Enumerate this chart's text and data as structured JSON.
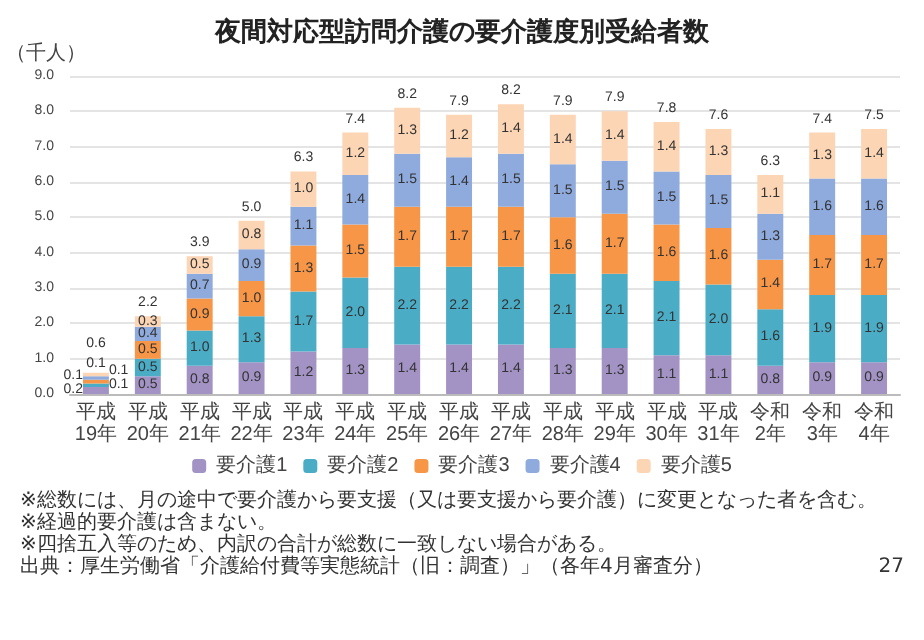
{
  "chart_data": {
    "type": "bar",
    "title": "夜間対応型訪問介護の要介護度別受給者数",
    "ylabel": "（千人）",
    "categories": [
      "平成19年",
      "平成20年",
      "平成21年",
      "平成22年",
      "平成23年",
      "平成24年",
      "平成25年",
      "平成26年",
      "平成27年",
      "平成28年",
      "平成29年",
      "平成30年",
      "平成31年",
      "令和2年",
      "令和3年",
      "令和4年"
    ],
    "stacked": true,
    "grid": "y",
    "legend": "bottom",
    "ylim": [
      0,
      9
    ],
    "yticks": [
      {
        "value": 0,
        "label": "0.0"
      },
      {
        "value": 1,
        "label": "1.0"
      },
      {
        "value": 2,
        "label": "2.0"
      },
      {
        "value": 3,
        "label": "3.0"
      },
      {
        "value": 4,
        "label": "4.0"
      },
      {
        "value": 5,
        "label": "5.0"
      },
      {
        "value": 6,
        "label": "6.0"
      },
      {
        "value": 7,
        "label": "7.0"
      },
      {
        "value": 8,
        "label": "8.0"
      },
      {
        "value": 9,
        "label": "9.0"
      }
    ],
    "series": [
      {
        "name": "要介護1",
        "color": "#a393c5",
        "values": [
          0.2,
          0.5,
          0.8,
          0.9,
          1.2,
          1.3,
          1.4,
          1.4,
          1.4,
          1.3,
          1.3,
          1.1,
          1.1,
          0.8,
          0.9,
          0.9
        ],
        "value_labels": [
          "0.2",
          "0.5",
          "0.8",
          "0.9",
          "1.2",
          "1.3",
          "1.4",
          "1.4",
          "1.4",
          "1.3",
          "1.3",
          "1.1",
          "1.1",
          "0.8",
          "0.9",
          "0.9"
        ]
      },
      {
        "name": "要介護2",
        "color": "#4bacc6",
        "values": [
          0.1,
          0.5,
          1.0,
          1.3,
          1.7,
          2.0,
          2.2,
          2.2,
          2.2,
          2.1,
          2.1,
          2.1,
          2.0,
          1.6,
          1.9,
          1.9
        ],
        "value_labels": [
          "0.1",
          "0.5",
          "1.0",
          "1.3",
          "1.7",
          "2.0",
          "2.2",
          "2.2",
          "2.2",
          "2.1",
          "2.1",
          "2.1",
          "2.0",
          "1.6",
          "1.9",
          "1.9"
        ]
      },
      {
        "name": "要介護3",
        "color": "#f79646",
        "values": [
          0.1,
          0.5,
          0.9,
          1.0,
          1.3,
          1.5,
          1.7,
          1.7,
          1.7,
          1.6,
          1.7,
          1.6,
          1.6,
          1.4,
          1.7,
          1.7
        ],
        "value_labels": [
          "0.1",
          "0.5",
          "0.9",
          "1.0",
          "1.3",
          "1.5",
          "1.7",
          "1.7",
          "1.7",
          "1.6",
          "1.7",
          "1.6",
          "1.6",
          "1.4",
          "1.7",
          "1.7"
        ]
      },
      {
        "name": "要介護4",
        "color": "#8faadc",
        "values": [
          0.1,
          0.4,
          0.7,
          0.9,
          1.1,
          1.4,
          1.5,
          1.4,
          1.5,
          1.5,
          1.5,
          1.5,
          1.5,
          1.3,
          1.6,
          1.6
        ],
        "value_labels": [
          "0.1",
          "0.4",
          "0.7",
          "0.9",
          "1.1",
          "1.4",
          "1.5",
          "1.4",
          "1.5",
          "1.5",
          "1.5",
          "1.5",
          "1.5",
          "1.3",
          "1.6",
          "1.6"
        ]
      },
      {
        "name": "要介護5",
        "color": "#fcd5b4",
        "values": [
          0.1,
          0.3,
          0.5,
          0.8,
          1.0,
          1.2,
          1.3,
          1.2,
          1.4,
          1.4,
          1.4,
          1.4,
          1.3,
          1.1,
          1.3,
          1.4
        ],
        "value_labels": [
          "0.1",
          "0.3",
          "0.5",
          "0.8",
          "1.0",
          "1.2",
          "1.3",
          "1.2",
          "1.4",
          "1.4",
          "1.4",
          "1.4",
          "1.3",
          "1.1",
          "1.3",
          "1.4"
        ]
      }
    ],
    "totals": [
      "0.6",
      "2.2",
      "3.9",
      "5.0",
      "6.3",
      "7.4",
      "8.2",
      "7.9",
      "8.2",
      "7.9",
      "7.9",
      "7.8",
      "7.6",
      "6.3",
      "7.4",
      "7.5"
    ],
    "annotations": [
      "※総数には、月の途中で要介護から要支援（又は要支援から要介護）に変更となった者を含む。",
      "※経過的要介護は含まない。",
      "※四捨五入等のため、内訳の合計が総数に一致しない場合がある。",
      "出典：厚生労働省「介護給付費等実態統計（旧：調査）」（各年4月審査分）",
      "27"
    ]
  }
}
